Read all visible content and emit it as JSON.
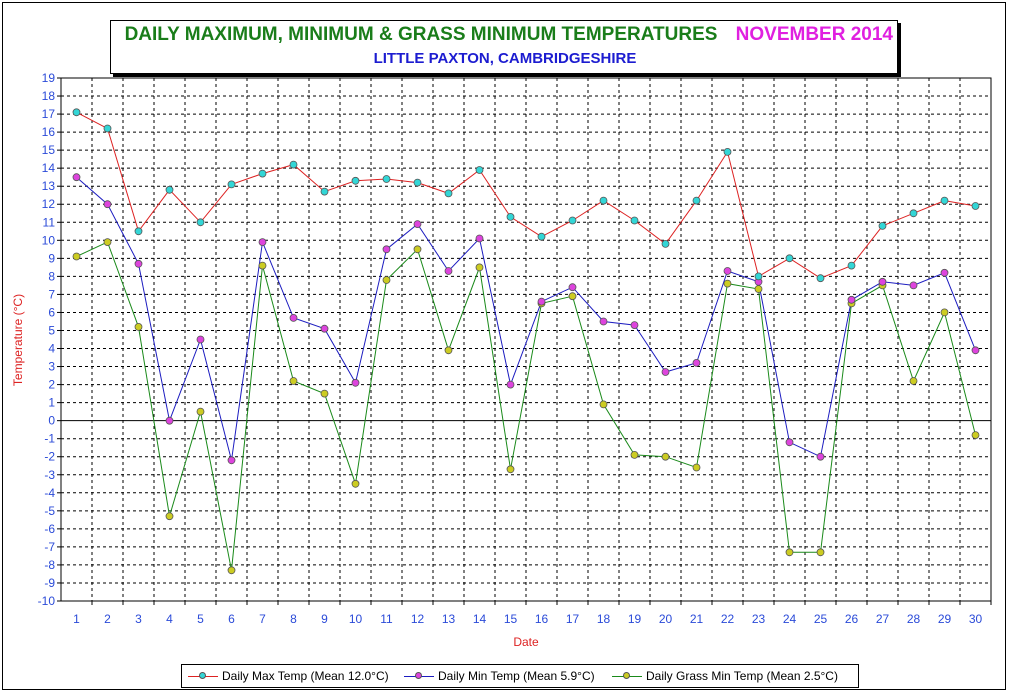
{
  "chart_data": {
    "type": "line",
    "title": "DAILY MAXIMUM, MINIMUM & GRASS MINIMUM TEMPERATURES",
    "title_month": "NOVEMBER 2014",
    "subtitle": "LITTLE PAXTON, CAMBRIDGESHIRE",
    "xlabel": "Date",
    "ylabel": "Temperature (°C)",
    "ylim": [
      -10,
      19
    ],
    "grid": true,
    "legend_position": "bottom",
    "x": [
      1,
      2,
      3,
      4,
      5,
      6,
      7,
      8,
      9,
      10,
      11,
      12,
      13,
      14,
      15,
      16,
      17,
      18,
      19,
      20,
      21,
      22,
      23,
      24,
      25,
      26,
      27,
      28,
      29,
      30
    ],
    "series": [
      {
        "name": "Daily Max Temp (Mean 12.0°C)",
        "line_color": "#dd2222",
        "marker_color": "#33d6d6",
        "values": [
          17.1,
          16.2,
          10.5,
          12.8,
          11.0,
          13.1,
          13.7,
          14.2,
          12.7,
          13.3,
          13.4,
          13.2,
          12.6,
          13.9,
          11.3,
          10.2,
          11.1,
          12.2,
          11.1,
          9.8,
          12.2,
          14.9,
          8.0,
          9.0,
          7.9,
          8.6,
          10.8,
          11.5,
          12.2,
          11.9
        ]
      },
      {
        "name": "Daily Min Temp (Mean 5.9°C)",
        "line_color": "#1c1cc0",
        "marker_color": "#dd44dd",
        "values": [
          13.5,
          12.0,
          8.7,
          0.0,
          4.5,
          -2.2,
          9.9,
          5.7,
          5.1,
          2.1,
          9.5,
          10.9,
          8.3,
          10.1,
          2.0,
          6.6,
          7.4,
          5.5,
          5.3,
          2.7,
          3.2,
          8.3,
          7.7,
          -1.2,
          -2.0,
          6.7,
          7.7,
          7.5,
          8.2,
          3.9
        ]
      },
      {
        "name": "Daily Grass Min Temp (Mean 2.5°C)",
        "line_color": "#1a8a1a",
        "marker_color": "#cccc22",
        "values": [
          9.1,
          9.9,
          5.2,
          -5.3,
          0.5,
          -8.3,
          8.6,
          2.2,
          1.5,
          -3.5,
          7.8,
          9.5,
          3.9,
          8.5,
          -2.7,
          6.5,
          6.9,
          0.9,
          -1.9,
          -2.0,
          -2.6,
          7.6,
          7.3,
          -7.3,
          -7.3,
          6.5,
          7.5,
          2.2,
          6.0,
          -0.8
        ]
      }
    ]
  }
}
